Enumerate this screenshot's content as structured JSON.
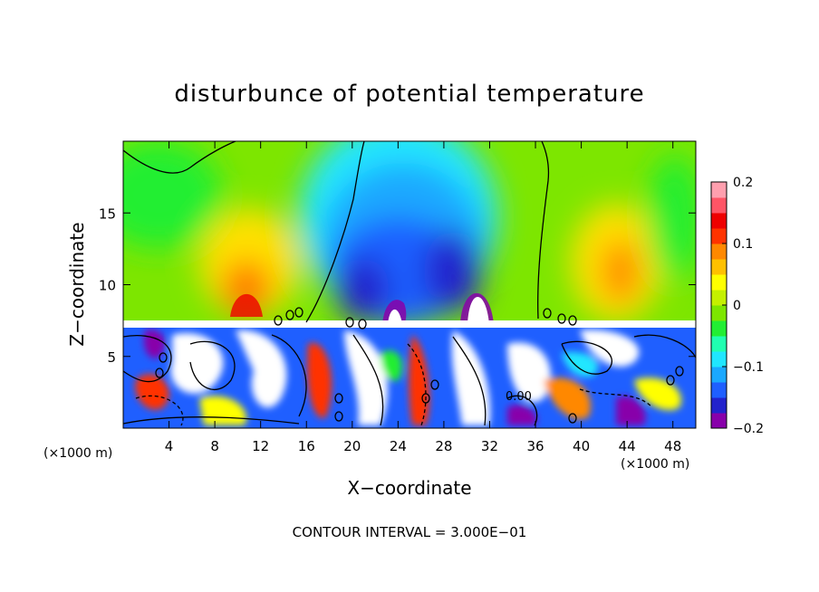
{
  "chart_data": {
    "type": "heatmap",
    "title": "disturbunce of potential temperature",
    "xlabel": "X−coordinate",
    "ylabel": "Z−coordinate",
    "x_unit_left": "(×1000 m)",
    "x_unit_right": "(×1000 m)",
    "footer": "CONTOUR INTERVAL = 3.000E−01",
    "contour_label": "0.00",
    "xlim": [
      0,
      50
    ],
    "ylim": [
      0,
      20
    ],
    "x_ticks": [
      4,
      8,
      12,
      16,
      20,
      24,
      28,
      32,
      36,
      40,
      44,
      48
    ],
    "y_ticks": [
      5,
      10,
      15
    ],
    "colorbar": {
      "min": -0.2,
      "max": 0.2,
      "ticks": [
        -0.2,
        -0.1,
        0,
        0.1,
        0.2
      ],
      "tick_labels": [
        "−0.2",
        "−0.1",
        "0",
        "0.1",
        "0.2"
      ],
      "colors": [
        "#8800aa",
        "#2222cc",
        "#1f5fff",
        "#1aa8ff",
        "#20e6ff",
        "#20ffb0",
        "#22ee33",
        "#7de600",
        "#c4f000",
        "#ffff00",
        "#ffc000",
        "#ff8800",
        "#ff3300",
        "#ee0000",
        "#ff5566",
        "#ff9fae"
      ]
    },
    "upper_features": [
      {
        "x": 2,
        "z": 15,
        "value": 0.02
      },
      {
        "x": 8,
        "z": 14,
        "value": 0.05
      },
      {
        "x": 10,
        "z": 10,
        "value": 0.13
      },
      {
        "x": 12,
        "z": 9.5,
        "value": 0.15
      },
      {
        "x": 19,
        "z": 14,
        "value": 0.0
      },
      {
        "x": 24,
        "z": 13,
        "value": -0.12
      },
      {
        "x": 28,
        "z": 12,
        "value": -0.17
      },
      {
        "x": 30,
        "z": 15,
        "value": -0.1
      },
      {
        "x": 33,
        "z": 12,
        "value": -0.12
      },
      {
        "x": 38,
        "z": 14,
        "value": 0.0
      },
      {
        "x": 44,
        "z": 12,
        "value": 0.12
      },
      {
        "x": 48,
        "z": 12,
        "value": 0.04
      }
    ]
  }
}
